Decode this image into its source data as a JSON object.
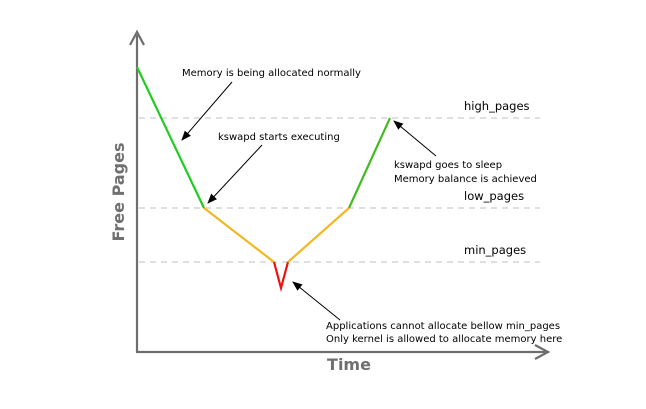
{
  "axes": {
    "x_label": "Time",
    "y_label": "Free Pages",
    "color": "#6e6e6e"
  },
  "levels": {
    "high": "high_pages",
    "low": "low_pages",
    "min": "min_pages",
    "line_color": "#cccccc"
  },
  "segments": {
    "allocating_color": "#22cc22",
    "reclaiming_color": "#f2b822",
    "critical_color": "#ee1111",
    "recovering_color": "#44bb22"
  },
  "annotations": {
    "allocating": "Memory is being allocated normally",
    "kswapd_start": "kswapd  starts executing",
    "kswapd_sleep_line1": "kswapd  goes to sleep",
    "kswapd_sleep_line2": "Memory balance is achieved",
    "min_line1": "Applications cannot allocate bellow min_pages",
    "min_line2": "Only kernel is allowed to allocate memory here"
  }
}
